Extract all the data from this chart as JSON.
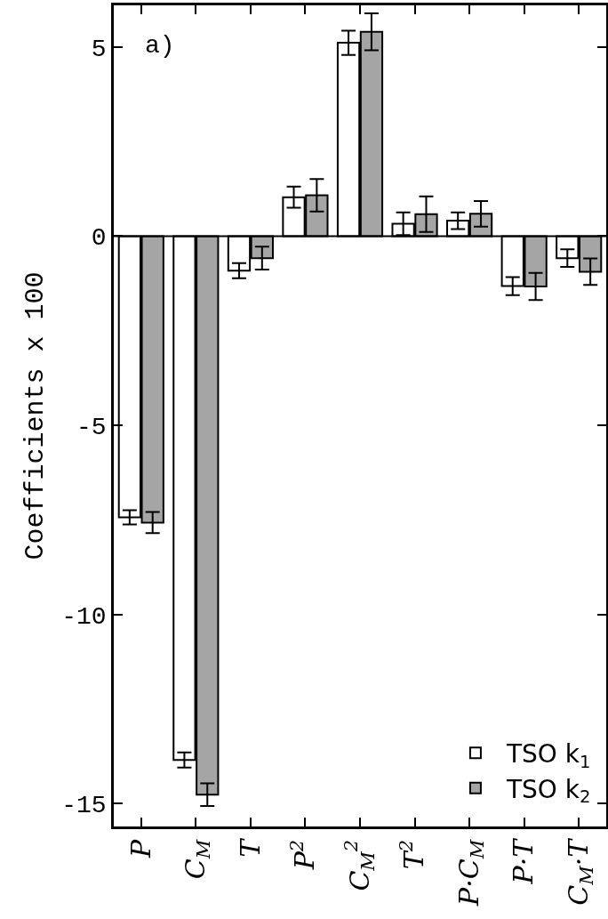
{
  "chart_data": {
    "type": "bar",
    "ylabel": "Coefficients x 100",
    "categories": [
      "P",
      "C$_{M}$",
      "T",
      "P$^{2}$",
      "C$_{M}$$^{2}$",
      "T$^{2}$",
      "P·C$_{M}$",
      "P·T",
      "C$_{M}$·T"
    ],
    "series": [
      {
        "name": "TSO k$_{1}$",
        "color": "#ffffff",
        "values": [
          -7.43,
          -13.84,
          -0.91,
          1.03,
          5.11,
          0.33,
          0.41,
          -1.32,
          -0.58
        ],
        "errors": [
          0.19,
          0.2,
          0.2,
          0.28,
          0.32,
          0.3,
          0.22,
          0.24,
          0.23
        ]
      },
      {
        "name": "TSO k$_{2}$",
        "color": "#a5a5a5",
        "values": [
          -7.57,
          -14.76,
          -0.58,
          1.08,
          5.4,
          0.58,
          0.59,
          -1.33,
          -0.94
        ],
        "errors": [
          0.28,
          0.3,
          0.3,
          0.43,
          0.49,
          0.47,
          0.34,
          0.36,
          0.35
        ]
      }
    ],
    "ylim": [
      -15.6,
      6.1
    ],
    "yticks": [
      -15,
      -10,
      -5,
      0,
      5
    ],
    "ref_lines": [
      {
        "axis": "y",
        "value": 0,
        "color": "#000000"
      }
    ],
    "annotations": [
      "a)"
    ],
    "legend": "bottom right",
    "grid": false
  }
}
